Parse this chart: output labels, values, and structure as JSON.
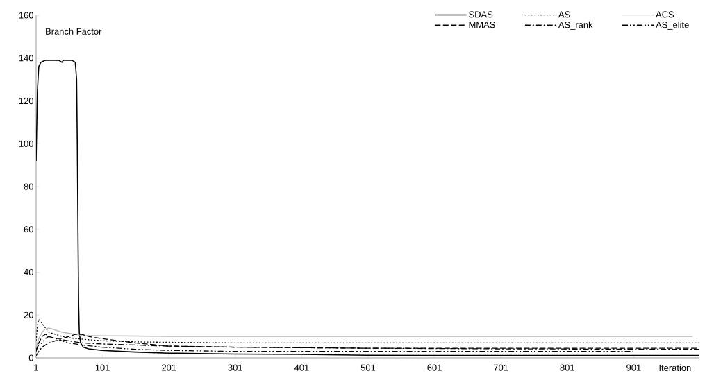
{
  "chart_data": {
    "type": "line",
    "ylabel": "Branch Factor",
    "xlabel": "Iteration",
    "xlim": [
      1,
      1000
    ],
    "ylim": [
      0,
      160
    ],
    "xticks": [
      1,
      101,
      201,
      301,
      401,
      501,
      601,
      701,
      801,
      901
    ],
    "yticks": [
      0,
      20,
      40,
      60,
      80,
      100,
      120,
      140,
      160
    ],
    "grid": false,
    "legend": "top right",
    "series": [
      {
        "name": "SDAS",
        "color": "#000000",
        "line_style": "solid",
        "x": [
          1,
          3,
          5,
          8,
          15,
          25,
          35,
          40,
          42,
          45,
          55,
          60,
          62,
          63,
          64,
          65,
          66,
          68,
          72,
          80,
          100,
          150,
          200,
          300,
          400,
          500,
          600,
          800,
          1000
        ],
        "values": [
          92,
          125,
          136,
          138,
          139,
          139,
          139,
          138,
          139,
          139,
          139,
          138,
          130,
          100,
          60,
          25,
          12,
          7,
          5,
          4.2,
          3.5,
          2.7,
          2.2,
          1.8,
          1.6,
          1.2,
          1.1,
          1.1,
          1.1
        ]
      },
      {
        "name": "AS",
        "color": "#000000",
        "line_style": "dotted",
        "x": [
          1,
          3,
          5,
          10,
          20,
          40,
          60,
          80,
          100,
          150,
          200,
          300,
          500,
          700,
          1000
        ],
        "values": [
          8,
          15,
          18,
          16,
          12,
          10,
          9,
          8.5,
          8,
          7.5,
          7.3,
          7,
          7,
          7,
          7
        ]
      },
      {
        "name": "ACS",
        "color": "#b4b4b4",
        "line_style": "solid",
        "x": [
          1,
          5,
          10,
          15,
          20,
          30,
          40,
          50,
          60,
          70,
          100,
          150,
          200,
          300,
          500,
          700,
          900,
          990
        ],
        "values": [
          5,
          9,
          12,
          13.5,
          14,
          13,
          12,
          11.5,
          11,
          10.5,
          10.3,
          10.2,
          10,
          10,
          10,
          10,
          10,
          10
        ]
      },
      {
        "name": "MMAS",
        "color": "#000000",
        "line_style": "dashed",
        "x": [
          1,
          5,
          10,
          15,
          20,
          30,
          40,
          50,
          60,
          70,
          80,
          100,
          150,
          200,
          300,
          500,
          700,
          900,
          1000
        ],
        "values": [
          3,
          7,
          10,
          11,
          10,
          9,
          9,
          10,
          11,
          11,
          10,
          9,
          7,
          5.5,
          5,
          4.5,
          4.5,
          4.5,
          4.5
        ]
      },
      {
        "name": "AS_rank",
        "color": "#000000",
        "line_style": "dashdot",
        "x": [
          1,
          5,
          10,
          20,
          30,
          40,
          50,
          60,
          70,
          100,
          150,
          200,
          300,
          500,
          700,
          1000
        ],
        "values": [
          1,
          3,
          5,
          7,
          8,
          8.5,
          8,
          7.5,
          7,
          6.5,
          6,
          5.5,
          5,
          4.5,
          4.2,
          4
        ]
      },
      {
        "name": "AS_elite",
        "color": "#000000",
        "line_style": "dashdotdot",
        "x": [
          1,
          5,
          10,
          15,
          20,
          30,
          40,
          50,
          60,
          70,
          100,
          150,
          200,
          300,
          500,
          700,
          900
        ],
        "values": [
          4,
          6,
          7,
          9,
          10,
          9,
          8,
          7,
          6.5,
          6,
          5,
          4,
          3.5,
          3,
          3,
          3,
          3
        ]
      }
    ]
  }
}
